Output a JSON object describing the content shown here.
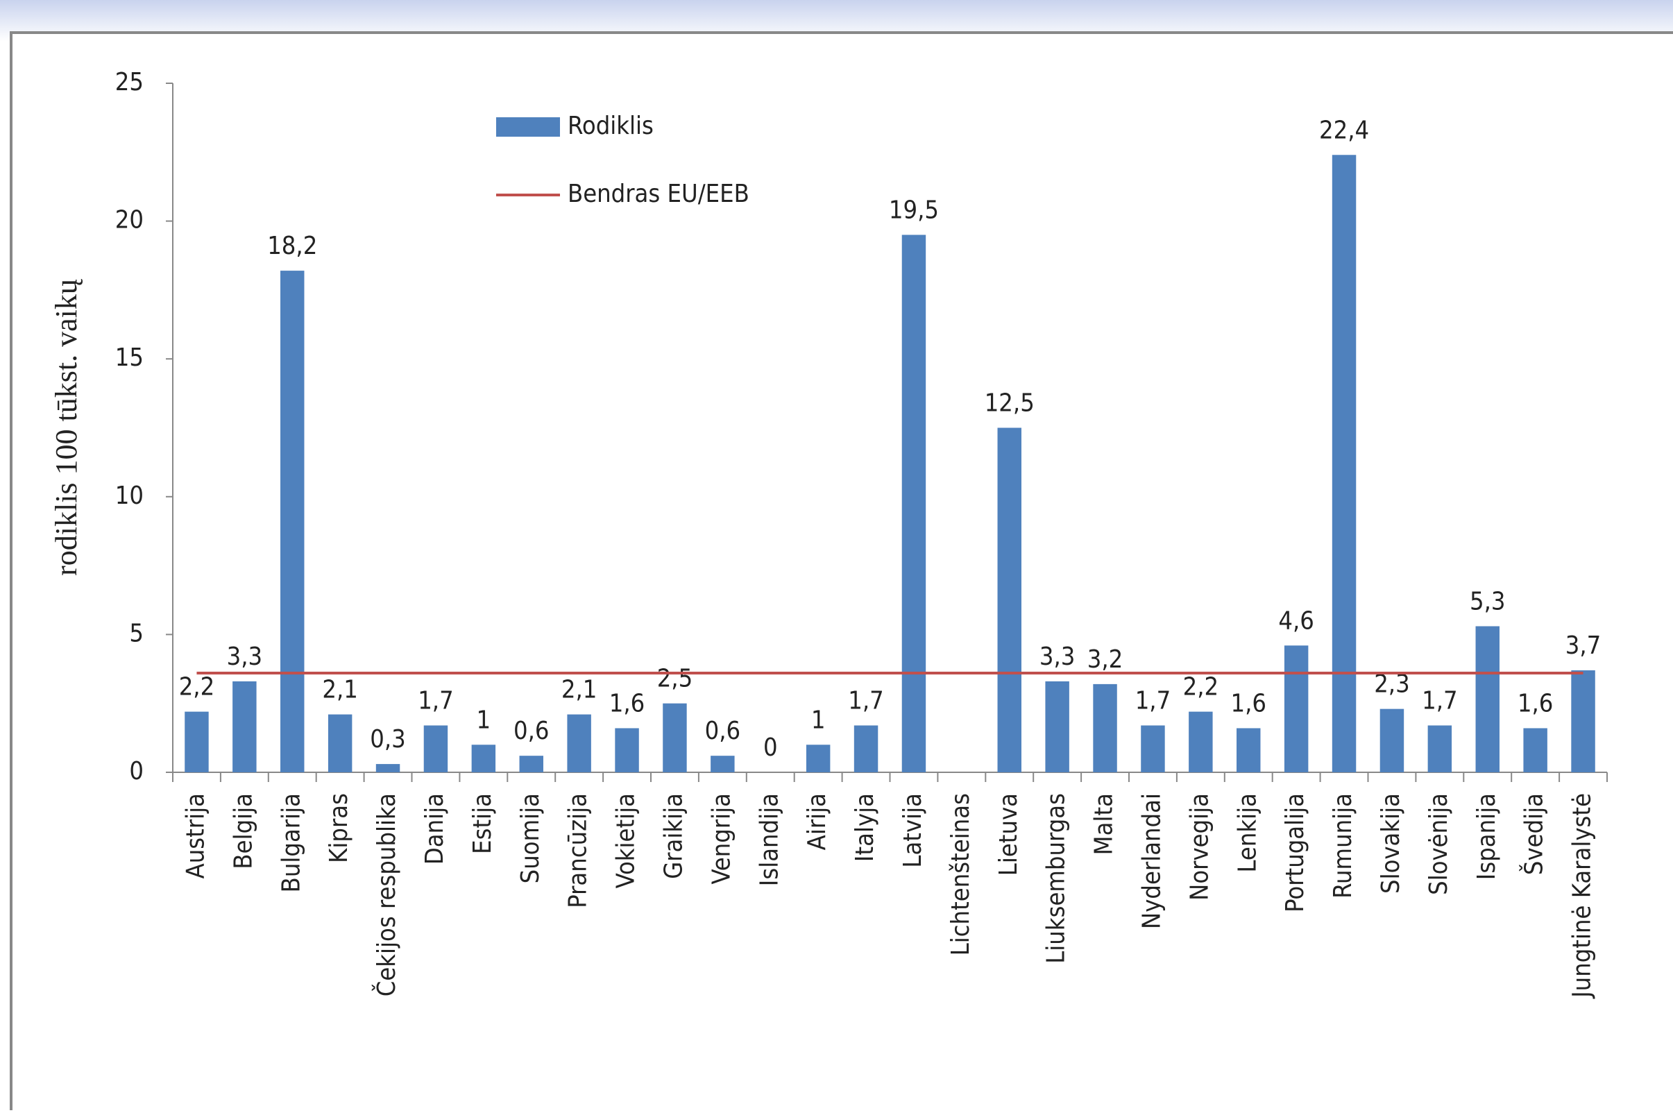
{
  "chart_data": {
    "type": "bar",
    "y_label": "rodiklis 100 tūkst. vaikų",
    "categories": [
      "Austrija",
      "Belgija",
      "Bulgarija",
      "Kipras",
      "Čekijos respublika",
      "Danija",
      "Estija",
      "Suomija",
      "Prancūzija",
      "Vokietija",
      "Graikija",
      "Vengrija",
      "Islandija",
      "Airija",
      "Italyja",
      "Latvija",
      "Lichtenšteinas",
      "Lietuva",
      "Liuksemburgas",
      "Malta",
      "Nyderlandai",
      "Norvegija",
      "Lenkija",
      "Portugalija",
      "Rumunija",
      "Slovakija",
      "Slovėnija",
      "Ispanija",
      "Švedija",
      "Jungtinė Karalystė"
    ],
    "series": [
      {
        "name": "Rodiklis",
        "type": "bar",
        "color": "#4f81bd",
        "values": [
          2.2,
          3.3,
          18.2,
          2.1,
          0.3,
          1.7,
          1,
          0.6,
          2.1,
          1.6,
          2.5,
          0.6,
          0,
          1,
          1.7,
          19.5,
          null,
          12.5,
          3.3,
          3.2,
          1.7,
          2.2,
          1.6,
          4.6,
          22.4,
          2.3,
          1.7,
          5.3,
          1.6,
          3.7
        ],
        "value_labels": [
          "2,2",
          "3,3",
          "18,2",
          "2,1",
          "0,3",
          "1,7",
          "1",
          "0,6",
          "2,1",
          "1,6",
          "2,5",
          "0,6",
          "0",
          "1",
          "1,7",
          "19,5",
          null,
          "12,5",
          "3,3",
          "3,2",
          "1,7",
          "2,2",
          "1,6",
          "4,6",
          "22,4",
          "2,3",
          "1,7",
          "5,3",
          "1,6",
          "3,7"
        ]
      },
      {
        "name": "Bendras EU/EEB",
        "type": "line",
        "color": "#c0504d",
        "values": [
          3.6,
          3.6,
          3.6,
          3.6,
          3.6,
          3.6,
          3.6,
          3.6,
          3.6,
          3.6,
          3.6,
          3.6,
          3.6,
          3.6,
          3.6,
          3.6,
          3.6,
          3.6,
          3.6,
          3.6,
          3.6,
          3.6,
          3.6,
          3.6,
          3.6,
          3.6,
          3.6,
          3.6,
          3.6,
          3.6
        ]
      }
    ],
    "ylim": [
      0,
      25
    ],
    "yticks": [
      0,
      5,
      10,
      15,
      20,
      25
    ],
    "grid": false
  }
}
